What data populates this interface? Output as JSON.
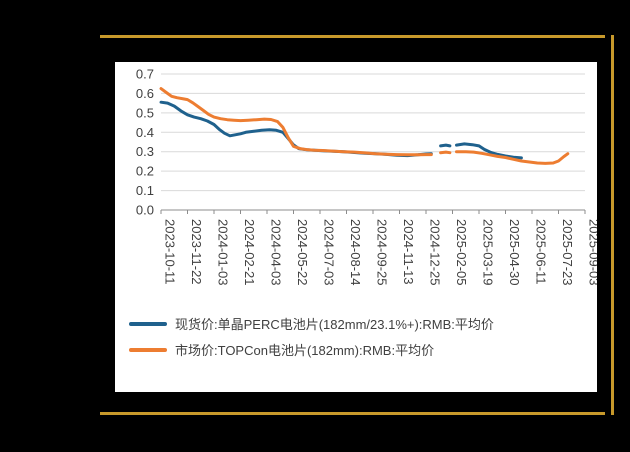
{
  "frame": {
    "accent_color": "#C7992B"
  },
  "chart_data": {
    "type": "line",
    "title": "",
    "background": "#FFFFFF",
    "text_color": "#404040",
    "grid": true,
    "gridline_color": "#D9D9D9",
    "axis_line_color": "#8C8C8C",
    "legend_position": "bottom",
    "ylim": [
      0.0,
      0.7
    ],
    "y_ticks": [
      0.0,
      0.1,
      0.2,
      0.3,
      0.4,
      0.5,
      0.6,
      0.7
    ],
    "x_tick_labels": [
      "2023-10-11",
      "2023-11-22",
      "2024-01-03",
      "2024-02-21",
      "2024-04-03",
      "2024-05-22",
      "2024-07-03",
      "2024-08-14",
      "2024-09-25",
      "2024-11-13",
      "2024-12-25",
      "2025-02-05",
      "2025-03-19",
      "2025-04-30",
      "2025-06-11",
      "2025-07-23",
      "2025-09-03"
    ],
    "x_unit": "tick-index (0 = 2023-10-11, 16 = 2025-09-03)",
    "series": [
      {
        "name": "现货价:单晶PERC电池片(182mm/23.1%+):RMB:平均价",
        "color": "#1F618D",
        "points": [
          [
            0,
            0.555
          ],
          [
            0.25,
            0.55
          ],
          [
            0.5,
            0.535
          ],
          [
            0.75,
            0.51
          ],
          [
            1,
            0.49
          ],
          [
            1.25,
            0.478
          ],
          [
            1.5,
            0.47
          ],
          [
            1.75,
            0.458
          ],
          [
            2,
            0.44
          ],
          [
            2.2,
            0.415
          ],
          [
            2.4,
            0.395
          ],
          [
            2.6,
            0.382
          ],
          [
            2.8,
            0.387
          ],
          [
            3,
            0.392
          ],
          [
            3.2,
            0.4
          ],
          [
            3.5,
            0.405
          ],
          [
            3.8,
            0.41
          ],
          [
            4.1,
            0.413
          ],
          [
            4.35,
            0.41
          ],
          [
            4.6,
            0.4
          ],
          [
            4.8,
            0.368
          ],
          [
            5,
            0.335
          ],
          [
            5.2,
            0.316
          ],
          [
            5.5,
            0.31
          ],
          [
            5.8,
            0.308
          ],
          [
            6.1,
            0.305
          ],
          [
            6.5,
            0.302
          ],
          [
            6.9,
            0.3
          ],
          [
            7.3,
            0.296
          ],
          [
            7.7,
            0.292
          ],
          [
            8.1,
            0.29
          ],
          [
            8.5,
            0.286
          ],
          [
            8.9,
            0.282
          ],
          [
            9.3,
            0.28
          ],
          [
            9.7,
            0.284
          ],
          [
            10,
            0.288
          ],
          [
            10.2,
            0.29
          ],
          null,
          [
            10.55,
            0.33
          ],
          [
            10.75,
            0.334
          ],
          [
            10.9,
            0.33
          ],
          null,
          [
            11.15,
            0.334
          ],
          [
            11.45,
            0.34
          ],
          [
            11.75,
            0.336
          ],
          [
            12,
            0.33
          ],
          [
            12.2,
            0.312
          ],
          [
            12.45,
            0.296
          ],
          [
            12.7,
            0.286
          ],
          [
            13,
            0.278
          ],
          [
            13.3,
            0.272
          ],
          [
            13.6,
            0.268
          ]
        ]
      },
      {
        "name": "市场价:TOPCon电池片(182mm):RMB:平均价",
        "color": "#ED7D31",
        "points": [
          [
            0,
            0.625
          ],
          [
            0.2,
            0.605
          ],
          [
            0.4,
            0.585
          ],
          [
            0.6,
            0.578
          ],
          [
            0.85,
            0.572
          ],
          [
            1,
            0.568
          ],
          [
            1.2,
            0.552
          ],
          [
            1.4,
            0.532
          ],
          [
            1.6,
            0.512
          ],
          [
            1.8,
            0.492
          ],
          [
            2,
            0.478
          ],
          [
            2.25,
            0.47
          ],
          [
            2.5,
            0.465
          ],
          [
            2.75,
            0.462
          ],
          [
            3,
            0.46
          ],
          [
            3.3,
            0.462
          ],
          [
            3.6,
            0.465
          ],
          [
            3.9,
            0.468
          ],
          [
            4.15,
            0.466
          ],
          [
            4.4,
            0.455
          ],
          [
            4.6,
            0.425
          ],
          [
            4.8,
            0.372
          ],
          [
            5,
            0.328
          ],
          [
            5.25,
            0.316
          ],
          [
            5.5,
            0.311
          ],
          [
            5.8,
            0.308
          ],
          [
            6.1,
            0.306
          ],
          [
            6.5,
            0.303
          ],
          [
            6.9,
            0.3
          ],
          [
            7.3,
            0.298
          ],
          [
            7.7,
            0.294
          ],
          [
            8.1,
            0.29
          ],
          [
            8.5,
            0.287
          ],
          [
            8.9,
            0.285
          ],
          [
            9.3,
            0.284
          ],
          [
            9.7,
            0.284
          ],
          [
            10,
            0.285
          ],
          [
            10.2,
            0.285
          ],
          null,
          [
            10.55,
            0.295
          ],
          [
            10.75,
            0.298
          ],
          [
            10.9,
            0.295
          ],
          null,
          [
            11.15,
            0.3
          ],
          [
            11.5,
            0.3
          ],
          [
            11.8,
            0.298
          ],
          [
            12.1,
            0.292
          ],
          [
            12.4,
            0.284
          ],
          [
            12.7,
            0.276
          ],
          [
            13,
            0.27
          ],
          [
            13.3,
            0.261
          ],
          [
            13.6,
            0.252
          ],
          [
            13.9,
            0.247
          ],
          [
            14.2,
            0.242
          ],
          [
            14.5,
            0.24
          ],
          [
            14.8,
            0.242
          ],
          [
            15,
            0.252
          ],
          [
            15.2,
            0.275
          ],
          [
            15.35,
            0.29
          ]
        ]
      }
    ]
  }
}
